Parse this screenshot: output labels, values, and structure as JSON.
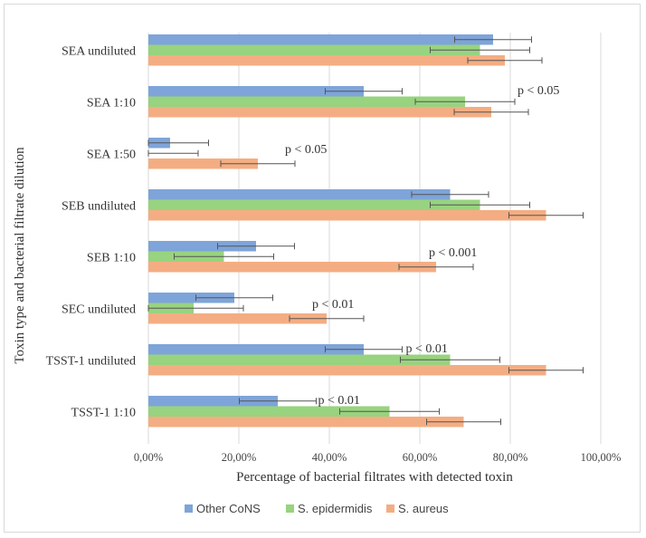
{
  "chart_data": {
    "type": "bar",
    "orientation": "horizontal",
    "xlabel": "Percentage of bacterial filtrates with detected toxin",
    "ylabel": "Toxin type and bacterial filtrate dilution",
    "xlim": [
      0,
      100
    ],
    "x_ticks": [
      "0,00%",
      "20,00%",
      "40,00%",
      "60,00%",
      "80,00%",
      "100,00%"
    ],
    "grid": "vertical",
    "legend_position": "bottom",
    "categories": [
      "SEA undiluted",
      "SEA 1:10",
      "SEA 1:50",
      "SEB undiluted",
      "SEB 1:10",
      "SEC undiluted",
      "TSST-1 undiluted",
      "TSST-1 1:10"
    ],
    "series": [
      {
        "name": "Other CoNS",
        "color": "#7ea4d9",
        "values": [
          76.2,
          47.6,
          4.8,
          66.7,
          23.8,
          19.0,
          47.6,
          28.6
        ],
        "error": [
          8.5,
          8.5,
          8.5,
          8.5,
          8.5,
          8.5,
          8.5,
          8.5
        ]
      },
      {
        "name": "S. epidermidis",
        "color": "#98d37f",
        "values": [
          73.3,
          70.0,
          0,
          73.3,
          16.7,
          10.0,
          66.7,
          53.3
        ],
        "error": [
          11,
          11,
          11,
          11,
          11,
          11,
          11,
          11
        ]
      },
      {
        "name": "S. aureus",
        "color": "#f4ad82",
        "values": [
          78.8,
          75.8,
          24.2,
          87.9,
          63.6,
          39.4,
          87.9,
          69.7
        ],
        "error": [
          8.2,
          8.2,
          8.2,
          8.2,
          8.2,
          8.2,
          8.2,
          8.2
        ]
      }
    ],
    "annotations": [
      "",
      "p < 0.05",
      "p < 0.05",
      "",
      "p < 0.001",
      "p < 0.01",
      "p < 0.01",
      "p < 0.01"
    ]
  }
}
